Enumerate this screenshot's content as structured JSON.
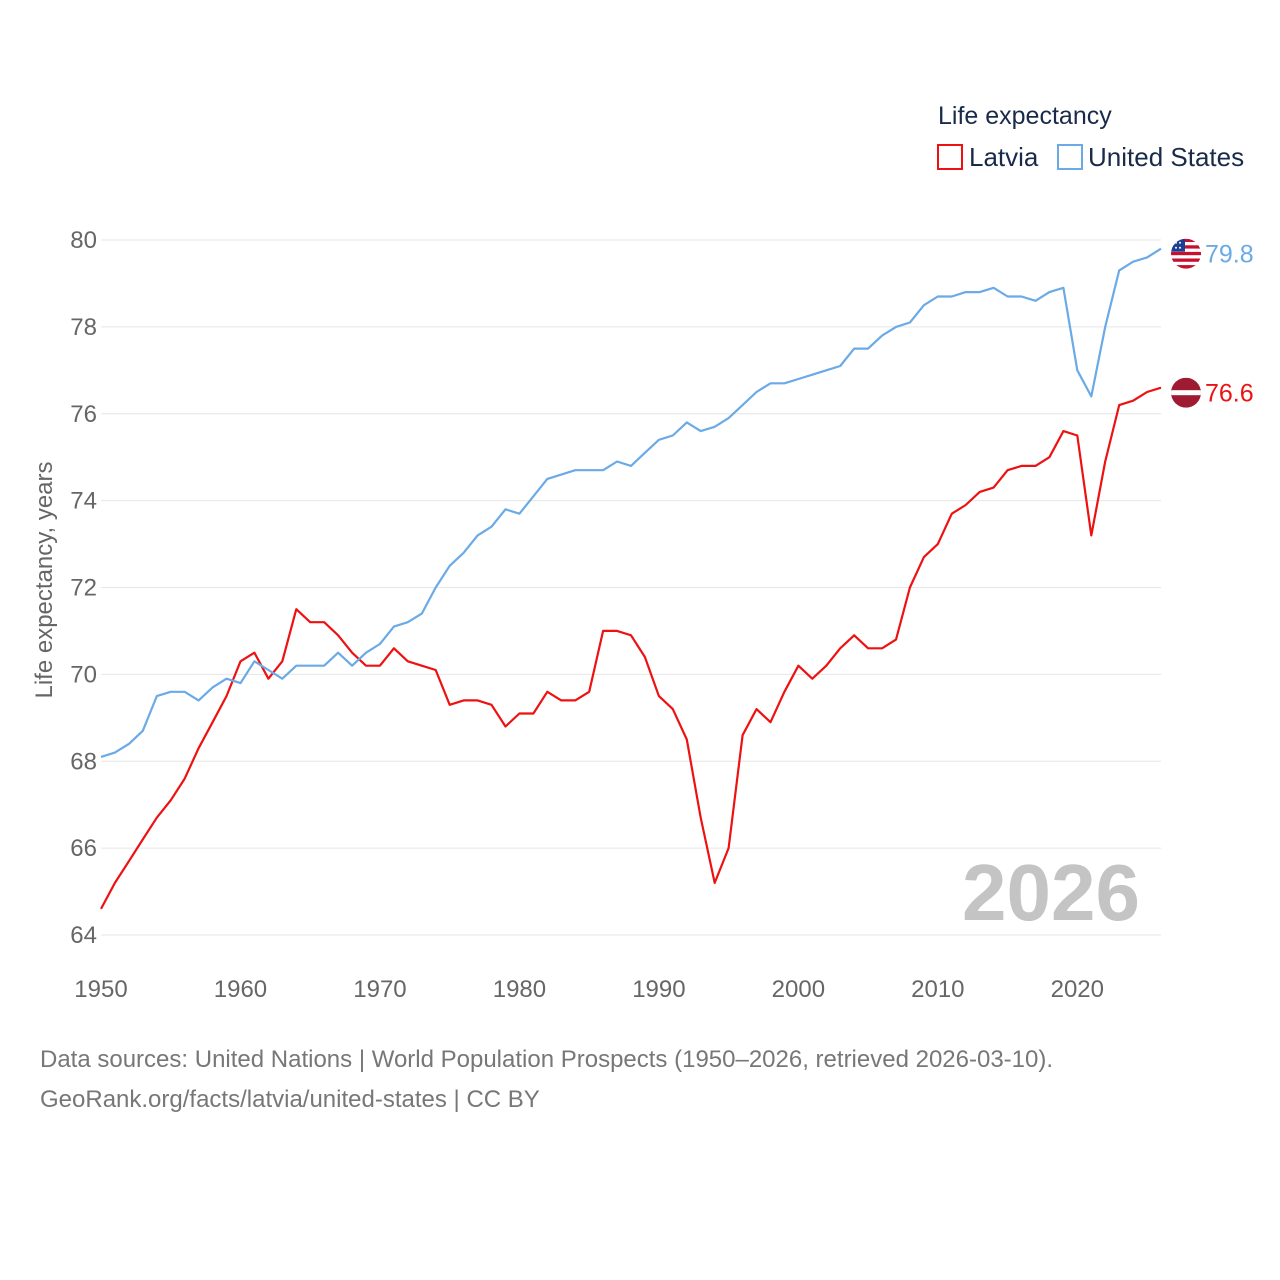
{
  "legend": {
    "title": "Life expectancy",
    "items": [
      {
        "label": "Latvia"
      },
      {
        "label": "United States"
      }
    ]
  },
  "footer": {
    "line1": "Data sources: United Nations | World Population Prospects (1950–2026, retrieved 2026-03-10).",
    "line2": "GeoRank.org/facts/latvia/united-states | CC BY"
  },
  "chart_data": {
    "type": "line",
    "title": "Life expectancy",
    "xlabel": "",
    "ylabel": "Life expectancy, years",
    "xlim": [
      1950,
      2026
    ],
    "ylim": [
      64,
      80
    ],
    "xticks": [
      1950,
      1960,
      1970,
      1980,
      1990,
      2000,
      2010,
      2020
    ],
    "yticks": [
      64,
      66,
      68,
      70,
      72,
      74,
      76,
      78,
      80
    ],
    "grid": true,
    "legend_position": "top-right",
    "current_year_label": "2026",
    "x": [
      1950,
      1951,
      1952,
      1953,
      1954,
      1955,
      1956,
      1957,
      1958,
      1959,
      1960,
      1961,
      1962,
      1963,
      1964,
      1965,
      1966,
      1967,
      1968,
      1969,
      1970,
      1971,
      1972,
      1973,
      1974,
      1975,
      1976,
      1977,
      1978,
      1979,
      1980,
      1981,
      1982,
      1983,
      1984,
      1985,
      1986,
      1987,
      1988,
      1989,
      1990,
      1991,
      1992,
      1993,
      1994,
      1995,
      1996,
      1997,
      1998,
      1999,
      2000,
      2001,
      2002,
      2003,
      2004,
      2005,
      2006,
      2007,
      2008,
      2009,
      2010,
      2011,
      2012,
      2013,
      2014,
      2015,
      2016,
      2017,
      2018,
      2019,
      2020,
      2021,
      2022,
      2023,
      2024,
      2025,
      2026
    ],
    "series": [
      {
        "name": "Latvia",
        "color": "#ee1111",
        "end_label": "76.6",
        "values": [
          64.6,
          65.2,
          65.7,
          66.2,
          66.7,
          67.1,
          67.6,
          68.3,
          68.9,
          69.5,
          70.3,
          70.5,
          69.9,
          70.3,
          71.5,
          71.2,
          71.2,
          70.9,
          70.5,
          70.2,
          70.2,
          70.6,
          70.3,
          70.2,
          70.1,
          69.3,
          69.4,
          69.4,
          69.3,
          68.8,
          69.1,
          69.1,
          69.6,
          69.4,
          69.4,
          69.6,
          71.0,
          71.0,
          70.9,
          70.4,
          69.5,
          69.2,
          68.5,
          66.7,
          65.2,
          66.0,
          68.6,
          69.2,
          68.9,
          69.6,
          70.2,
          69.9,
          70.2,
          70.6,
          70.9,
          70.6,
          70.6,
          70.8,
          72.0,
          72.7,
          73.0,
          73.7,
          73.9,
          74.2,
          74.3,
          74.7,
          74.8,
          74.8,
          75.0,
          75.6,
          75.5,
          73.2,
          74.9,
          76.2,
          76.3,
          76.5,
          76.6
        ]
      },
      {
        "name": "United States",
        "color": "#6aaae6",
        "end_label": "79.8",
        "values": [
          68.1,
          68.2,
          68.4,
          68.7,
          69.5,
          69.6,
          69.6,
          69.4,
          69.7,
          69.9,
          69.8,
          70.3,
          70.1,
          69.9,
          70.2,
          70.2,
          70.2,
          70.5,
          70.2,
          70.5,
          70.7,
          71.1,
          71.2,
          71.4,
          72.0,
          72.5,
          72.8,
          73.2,
          73.4,
          73.8,
          73.7,
          74.1,
          74.5,
          74.6,
          74.7,
          74.7,
          74.7,
          74.9,
          74.8,
          75.1,
          75.4,
          75.5,
          75.8,
          75.6,
          75.7,
          75.9,
          76.2,
          76.5,
          76.7,
          76.7,
          76.8,
          76.9,
          77.0,
          77.1,
          77.5,
          77.5,
          77.8,
          78.0,
          78.1,
          78.5,
          78.7,
          78.7,
          78.8,
          78.8,
          78.9,
          78.7,
          78.7,
          78.6,
          78.8,
          78.9,
          77.0,
          76.4,
          78.0,
          79.3,
          79.5,
          79.6,
          79.8
        ]
      }
    ]
  }
}
